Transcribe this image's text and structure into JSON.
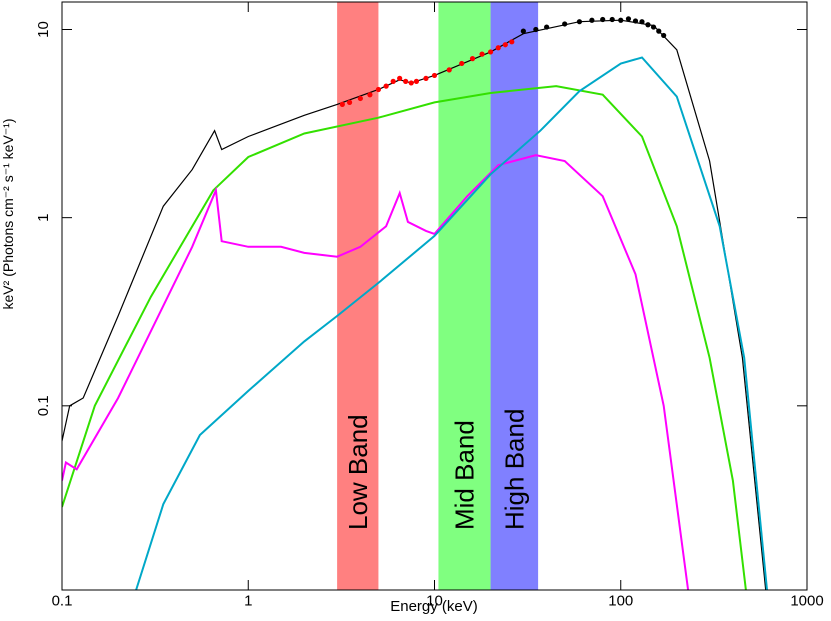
{
  "chart_data": {
    "type": "line",
    "xlabel": "Energy (keV)",
    "ylabel": "keV² (Photons cm⁻² s⁻¹ keV⁻¹)",
    "xscale": "log",
    "yscale": "log",
    "xlim": [
      0.1,
      1000
    ],
    "ylim": [
      0.0105,
      14
    ],
    "xticks": [
      0.1,
      1,
      10,
      100,
      1000
    ],
    "yticks": [
      0.1,
      1,
      10
    ],
    "bands": [
      {
        "label": "Low Band",
        "range": [
          3,
          5
        ],
        "color": "#ff8080"
      },
      {
        "label": "Mid Band",
        "range": [
          10.5,
          20
        ],
        "color": "#80ff80"
      },
      {
        "label": "High Band",
        "range": [
          20,
          36
        ],
        "color": "#8080ff"
      }
    ],
    "series": [
      {
        "color": "#000000",
        "width": 1.2,
        "x": [
          0.1,
          0.11,
          0.13,
          0.2,
          0.35,
          0.5,
          0.66,
          0.72,
          1,
          2,
          3,
          5,
          6.5,
          7.5,
          10,
          20,
          30,
          60,
          100,
          150,
          200,
          300,
          450,
          600
        ],
        "y": [
          0.065,
          0.1,
          0.11,
          0.3,
          1.15,
          1.8,
          2.9,
          2.3,
          2.7,
          3.5,
          4.0,
          4.8,
          5.4,
          5.2,
          5.7,
          7.6,
          9.5,
          11,
          11.2,
          10.5,
          7.8,
          2,
          0.18,
          0.0105
        ]
      },
      {
        "color": "#33e000",
        "width": 2,
        "x": [
          0.1,
          0.15,
          0.3,
          0.65,
          1,
          2,
          5,
          10,
          20,
          45,
          80,
          130,
          200,
          300,
          400,
          470
        ],
        "y": [
          0.029,
          0.1,
          0.38,
          1.4,
          2.1,
          2.8,
          3.4,
          4.1,
          4.6,
          5.0,
          4.5,
          2.7,
          0.9,
          0.18,
          0.04,
          0.0105
        ]
      },
      {
        "color": "#ff00ff",
        "width": 2,
        "x": [
          0.1,
          0.105,
          0.12,
          0.2,
          0.35,
          0.5,
          0.67,
          0.72,
          1,
          1.5,
          2,
          3,
          4,
          5.5,
          6.5,
          7.2,
          9,
          10,
          15,
          22,
          35,
          50,
          80,
          120,
          170,
          230
        ],
        "y": [
          0.04,
          0.05,
          0.046,
          0.11,
          0.34,
          0.7,
          1.4,
          0.75,
          0.7,
          0.7,
          0.65,
          0.62,
          0.7,
          0.9,
          1.35,
          0.95,
          0.85,
          0.82,
          1.3,
          1.9,
          2.15,
          2.0,
          1.3,
          0.5,
          0.1,
          0.0105
        ]
      },
      {
        "color": "#00a8c8",
        "width": 2,
        "x": [
          0.25,
          0.35,
          0.55,
          1,
          2,
          3,
          5,
          10,
          20,
          37,
          60,
          100,
          130,
          200,
          340,
          460,
          610
        ],
        "y": [
          0.0105,
          0.03,
          0.07,
          0.12,
          0.22,
          0.3,
          0.45,
          0.8,
          1.7,
          2.9,
          4.7,
          6.6,
          7.1,
          4.4,
          0.9,
          0.18,
          0.0105
        ]
      }
    ],
    "points": [
      {
        "color": "#ff0000",
        "x": [
          3.2,
          3.5,
          4,
          4.5,
          5,
          5.5,
          6,
          6.5,
          7,
          7.5,
          8,
          9,
          10,
          12,
          14,
          16,
          18,
          20,
          22,
          24,
          26
        ],
        "y": [
          4.0,
          4.1,
          4.3,
          4.5,
          4.8,
          5.0,
          5.3,
          5.5,
          5.3,
          5.2,
          5.3,
          5.5,
          5.7,
          6.1,
          6.6,
          7.0,
          7.4,
          7.6,
          8.0,
          8.3,
          8.6
        ]
      },
      {
        "color": "#000000",
        "x": [
          30,
          35,
          40,
          50,
          60,
          70,
          80,
          90,
          100,
          110,
          120,
          130,
          140,
          150,
          160,
          170
        ],
        "y": [
          9.8,
          10.0,
          10.3,
          10.7,
          11.0,
          11.2,
          11.3,
          11.3,
          11.2,
          11.4,
          11.1,
          11.0,
          10.6,
          10.3,
          9.8,
          9.3
        ]
      }
    ]
  }
}
